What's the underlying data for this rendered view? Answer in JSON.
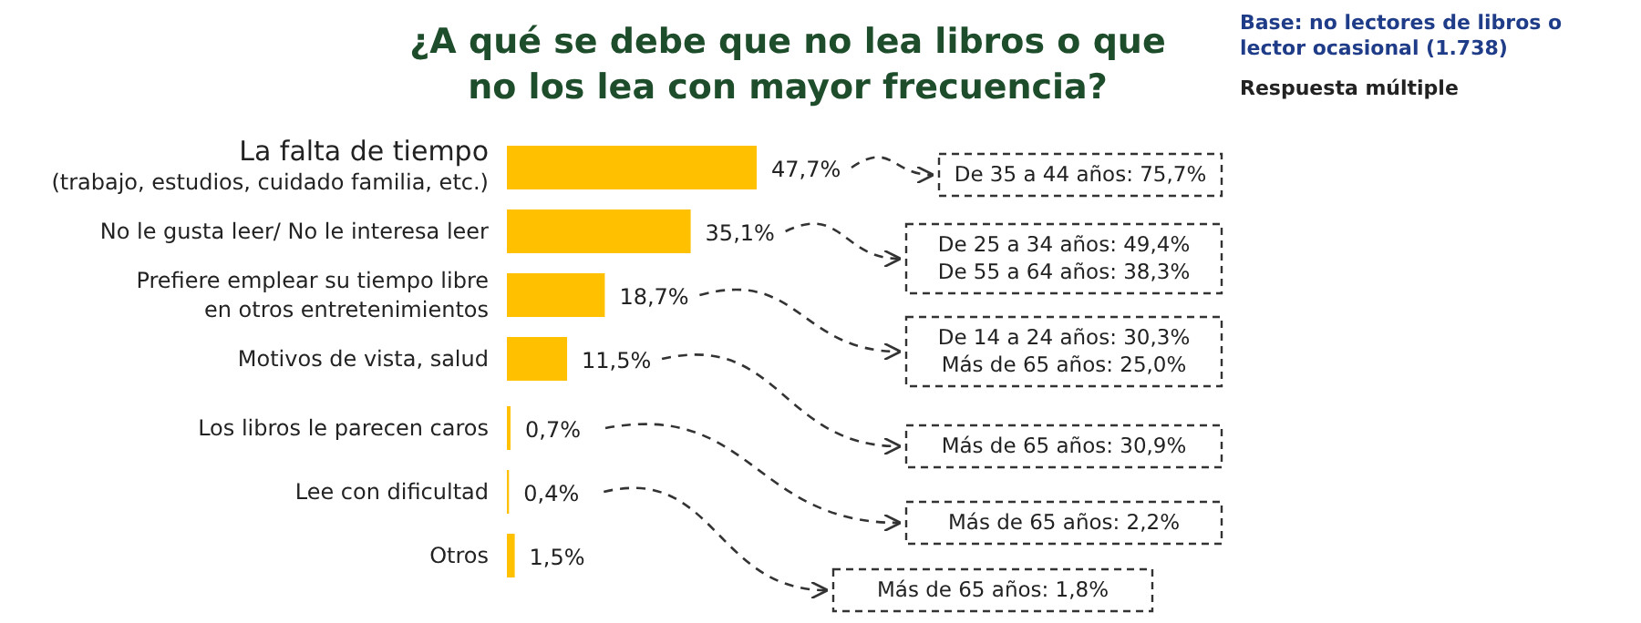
{
  "chart_data": {
    "type": "bar",
    "orientation": "horizontal",
    "title": "¿A qué se debe que no lea libros o que\nno los lea con mayor frecuencia?",
    "subtitle": "Base: no lectores de libros o\nlector ocasional (1.738)",
    "categories": [
      "La falta de tiempo\n(trabajo, estudios, cuidado familia, etc.)",
      "No le gusta leer/ No le interesa leer",
      "Prefiere emplear su tiempo libre\nen otros entretenimientos",
      "Motivos de vista, salud",
      "Los libros le parecen caros",
      "Lee con dificultad",
      "Otros"
    ],
    "values": [
      47.7,
      35.1,
      18.7,
      11.5,
      0.7,
      0.4,
      1.5
    ],
    "value_labels": [
      "47,7%",
      "35,1%",
      "18,7%",
      "11,5%",
      "0,7%",
      "0,4%",
      "1,5%"
    ],
    "color": "#ffc000",
    "annotations": [
      "Respuesta múltiple",
      "De 35 a 44 años: 75,7%",
      "De 25 a 34 años: 49,4%\nDe 55 a 64 años: 38,3%",
      "De 14 a 24 años: 30,3%\nMás de 65 años: 25,0%",
      "Más de 65 años: 30,9%",
      "Más de 65 años: 2,2%",
      "Más de 65 años: 1,8%"
    ]
  }
}
